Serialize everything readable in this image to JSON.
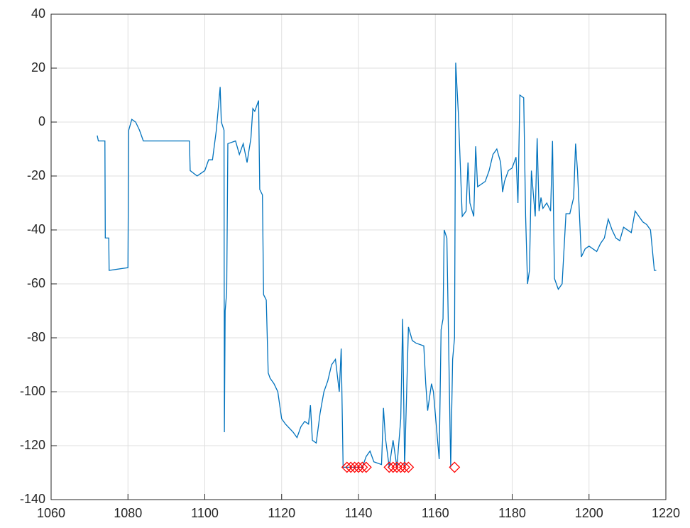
{
  "chart_data": {
    "type": "line",
    "xlim": [
      1060,
      1220
    ],
    "xticks": [
      1060,
      1080,
      1100,
      1120,
      1140,
      1160,
      1180,
      1200,
      1220
    ],
    "ylim": [
      -140,
      40
    ],
    "yticks": [
      -140,
      -120,
      -100,
      -80,
      -60,
      -40,
      -20,
      0,
      20,
      40
    ],
    "grid": true,
    "series": [
      {
        "type": "line",
        "color": "#0072bd",
        "x": [
          1072,
          1072.3,
          1074,
          1074.1,
          1075,
          1075.1,
          1080,
          1080.2,
          1081,
          1082,
          1083,
          1084,
          1096,
          1096.2,
          1098,
          1099,
          1100,
          1101,
          1102,
          1103,
          1104,
          1104.3,
          1105,
          1105.1,
          1105.3,
          1105.7,
          1106,
          1108,
          1109,
          1110,
          1111,
          1112,
          1112.5,
          1113,
          1114,
          1114.3,
          1115,
          1115.3,
          1116,
          1116.5,
          1117,
          1118,
          1119,
          1120,
          1121,
          1123,
          1124,
          1125,
          1126,
          1127,
          1127.5,
          1128,
          1129,
          1130,
          1131,
          1132,
          1133,
          1134,
          1135,
          1135.5,
          1136,
          1141,
          1142,
          1143,
          1144,
          1146,
          1146.5,
          1147,
          1148,
          1149,
          1150,
          1151,
          1151.5,
          1152,
          1153,
          1154,
          1155,
          1157,
          1157.5,
          1158,
          1159,
          1159.5,
          1161,
          1161.5,
          1162,
          1162.3,
          1163,
          1164,
          1164.5,
          1165,
          1165.3,
          1166,
          1167,
          1168,
          1168.5,
          1169,
          1170,
          1170.5,
          1171,
          1173,
          1174,
          1175,
          1176,
          1177,
          1177.5,
          1178,
          1179,
          1180,
          1181,
          1181.5,
          1182,
          1183,
          1183.5,
          1184,
          1184.5,
          1185,
          1186,
          1186.5,
          1187,
          1187.5,
          1188,
          1189,
          1190,
          1190.5,
          1191,
          1192,
          1193,
          1194,
          1195,
          1196,
          1196.5,
          1197,
          1198,
          1199,
          1200,
          1202,
          1203,
          1204,
          1205,
          1206,
          1207,
          1208,
          1209,
          1211,
          1212,
          1213,
          1214,
          1215,
          1216,
          1217,
          1217.5
        ],
        "values": [
          -5,
          -7,
          -7,
          -43,
          -43,
          -55,
          -54,
          -3,
          1,
          0,
          -3,
          -7,
          -7,
          -18,
          -20,
          -19,
          -18,
          -14,
          -14,
          -3,
          13,
          0,
          -3,
          -115,
          -70,
          -63,
          -8,
          -7,
          -12,
          -8,
          -15,
          -6,
          5,
          4,
          8,
          -25,
          -27,
          -64,
          -66,
          -93,
          -95,
          -97,
          -100,
          -110,
          -112,
          -115,
          -117,
          -113,
          -111,
          -112,
          -105,
          -118,
          -119,
          -108,
          -100,
          -96,
          -90,
          -88,
          -100,
          -84,
          -128,
          -128,
          -124,
          -122,
          -126,
          -127,
          -106,
          -117,
          -128,
          -118,
          -128,
          -110,
          -73,
          -128,
          -76,
          -81,
          -82,
          -83,
          -97,
          -107,
          -97,
          -100,
          -125,
          -77,
          -73,
          -40,
          -43,
          -128,
          -88,
          -80,
          22,
          3,
          -35,
          -33,
          -15,
          -30,
          -35,
          -9,
          -24,
          -22,
          -18,
          -12,
          -10,
          -15,
          -26,
          -22,
          -18,
          -17,
          -13,
          -30,
          10,
          9,
          -35,
          -60,
          -55,
          -18,
          -35,
          -6,
          -33,
          -28,
          -32,
          -30,
          -33,
          -7,
          -58,
          -62,
          -60,
          -34,
          -34,
          -28,
          -8,
          -18,
          -50,
          -47,
          -46,
          -48,
          -45,
          -43,
          -36,
          -40,
          -43,
          -44,
          -39,
          -41,
          -33,
          -35,
          -37,
          -38,
          -40,
          -55,
          -55
        ]
      },
      {
        "type": "scatter",
        "marker": "diamond",
        "color": "#ff0000",
        "x": [
          1137,
          1138,
          1139,
          1140,
          1141,
          1142,
          1148,
          1149,
          1150,
          1151,
          1152,
          1153,
          1165
        ],
        "values": [
          -128,
          -128,
          -128,
          -128,
          -128,
          -128,
          -128,
          -128,
          -128,
          -128,
          -128,
          -128,
          -128
        ]
      }
    ]
  }
}
